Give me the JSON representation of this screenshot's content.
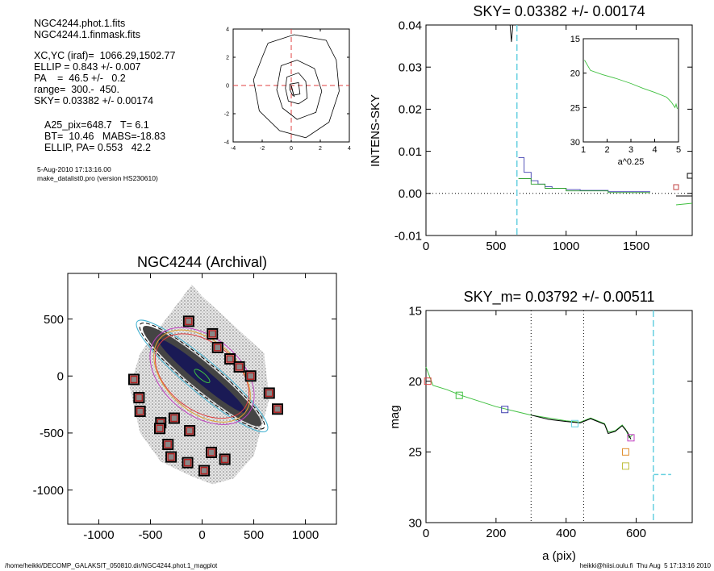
{
  "info": {
    "lines": [
      "NGC4244.phot.1.fits",
      "NGC4244.1.finmask.fits",
      "XC,YC (iraf)=  1066.29,1502.77",
      "ELLIP = 0.843 +/- 0.007",
      "PA    =  46.5 +/-   0.2",
      "range=  300.-  450.",
      "SKY= 0.03382 +/- 0.00174",
      "A25_pix=648.7   T= 6.1",
      "BT=  10.46   MABS=-18.83",
      "ELLIP, PA= 0.553   42.2",
      "5-Aug-2010 17:13:16.00",
      "make_datalist0.pro (version HS230610)"
    ]
  },
  "footer": {
    "left": "/home/heikki/DECOMP_GALAKSIT_050810.dir/NGC4244.phot.1_magplot",
    "right": "heikki@hiisi.oulu.fi  Thu Aug  5 17:13:16 2010"
  },
  "chart_data": [
    {
      "id": "contour",
      "type": "contour",
      "xlim": [
        -4,
        4
      ],
      "ylim": [
        -4,
        4
      ],
      "xticks": [
        "-4",
        "-2",
        "0",
        "2",
        "4"
      ],
      "yticks": [
        "-4",
        "-2",
        "0",
        "2",
        "4"
      ],
      "contours": [
        [
          [
            -1.6,
            3.0
          ],
          [
            0.2,
            3.6
          ],
          [
            2.4,
            3.2
          ],
          [
            3.1,
            1.8
          ],
          [
            3.3,
            -0.4
          ],
          [
            2.6,
            -2.6
          ],
          [
            1.0,
            -3.7
          ],
          [
            -0.8,
            -3.2
          ],
          [
            -2.2,
            -1.8
          ],
          [
            -2.6,
            0.4
          ],
          [
            -2.0,
            2.0
          ],
          [
            -1.6,
            3.0
          ]
        ],
        [
          [
            -0.7,
            1.4
          ],
          [
            0.4,
            1.8
          ],
          [
            1.6,
            1.2
          ],
          [
            2.1,
            -0.4
          ],
          [
            1.7,
            -1.9
          ],
          [
            0.4,
            -2.4
          ],
          [
            -0.6,
            -1.6
          ],
          [
            -1.0,
            -0.3
          ],
          [
            -0.7,
            1.4
          ]
        ],
        [
          [
            -0.3,
            0.6
          ],
          [
            0.5,
            0.9
          ],
          [
            1.0,
            0.3
          ],
          [
            1.1,
            -0.9
          ],
          [
            0.5,
            -1.3
          ],
          [
            -0.2,
            -1.1
          ],
          [
            -0.4,
            -0.2
          ],
          [
            -0.3,
            0.6
          ]
        ],
        [
          [
            -0.1,
            0.1
          ],
          [
            0.5,
            0.2
          ],
          [
            0.6,
            -0.6
          ],
          [
            0.1,
            -0.7
          ],
          [
            -0.1,
            -0.3
          ],
          [
            -0.1,
            0.1
          ]
        ]
      ],
      "cross_color": "#e04040"
    },
    {
      "id": "intens",
      "type": "line",
      "title": "SKY= 0.03382 +/- 0.00174",
      "ylabel": "INTENS-SKY",
      "xlim": [
        0,
        1900
      ],
      "ylim": [
        -0.01,
        0.04
      ],
      "xticks": [
        "0",
        "500",
        "1000",
        "1500"
      ],
      "yticks": [
        "-0.01",
        "0.00",
        "0.01",
        "0.02",
        "0.03",
        "0.04"
      ],
      "vline_x": 649,
      "vline_color": "#66d0e0",
      "series": [
        {
          "color": "#4040b0",
          "points": [
            [
              660,
              0.0085
            ],
            [
              700,
              0.0085
            ],
            [
              700,
              0.005
            ],
            [
              750,
              0.005
            ],
            [
              750,
              0.003
            ],
            [
              800,
              0.003
            ],
            [
              800,
              0.0022
            ],
            [
              850,
              0.0022
            ],
            [
              850,
              0.0016
            ],
            [
              900,
              0.0016
            ],
            [
              900,
              0.0012
            ],
            [
              1000,
              0.0012
            ],
            [
              1000,
              0.0009
            ],
            [
              1100,
              0.0009
            ],
            [
              1100,
              0.0007
            ],
            [
              1300,
              0.0007
            ],
            [
              1300,
              0.0004
            ],
            [
              1600,
              0.0004
            ]
          ]
        },
        {
          "color": "#30a030",
          "points": [
            [
              660,
              0.0035
            ],
            [
              750,
              0.0035
            ],
            [
              750,
              0.0022
            ],
            [
              850,
              0.0022
            ],
            [
              850,
              0.0012
            ],
            [
              1000,
              0.0012
            ],
            [
              1000,
              0.0006
            ],
            [
              1300,
              0.0006
            ],
            [
              1300,
              0.0002
            ],
            [
              1600,
              0.0002
            ]
          ]
        },
        {
          "color": "#000000",
          "points": [
            [
              600,
              0.04
            ],
            [
              610,
              0.036
            ],
            [
              620,
              0.04
            ]
          ]
        }
      ],
      "inset": {
        "xlabel": "a^0.25",
        "xlim": [
          1,
          5
        ],
        "ylim": [
          30,
          15
        ],
        "xticks": [
          "1",
          "2",
          "3",
          "4",
          "5"
        ],
        "yticks": [
          "15",
          "20",
          "25",
          "30"
        ],
        "points": [
          [
            1.05,
            18.1
          ],
          [
            1.3,
            19.6
          ],
          [
            1.8,
            20.2
          ],
          [
            2.4,
            20.8
          ],
          [
            3.0,
            21.5
          ],
          [
            3.5,
            22.2
          ],
          [
            4.0,
            22.8
          ],
          [
            4.5,
            23.5
          ],
          [
            4.7,
            24.2
          ],
          [
            4.85,
            25.0
          ],
          [
            4.9,
            24.5
          ],
          [
            4.95,
            25.2
          ]
        ],
        "color": "#40c040"
      }
    },
    {
      "id": "image",
      "type": "image",
      "title": "NGC4244 (Archival)",
      "xlim": [
        -1300,
        1300
      ],
      "ylim": [
        -1300,
        900
      ],
      "xticks": [
        "-1000",
        "-500",
        "0",
        "500",
        "1000"
      ],
      "yticks": [
        "500",
        "0",
        "-500",
        "-1000"
      ],
      "squares": [
        [
          -130,
          480
        ],
        [
          100,
          370
        ],
        [
          150,
          250
        ],
        [
          270,
          150
        ],
        [
          360,
          80
        ],
        [
          470,
          0
        ],
        [
          650,
          -150
        ],
        [
          730,
          -290
        ],
        [
          -660,
          -30
        ],
        [
          -610,
          -190
        ],
        [
          -600,
          -310
        ],
        [
          -270,
          -370
        ],
        [
          -400,
          -410
        ],
        [
          -410,
          -460
        ],
        [
          -120,
          -480
        ],
        [
          -330,
          -600
        ],
        [
          -300,
          -710
        ],
        [
          -140,
          -760
        ],
        [
          90,
          -670
        ],
        [
          220,
          -730
        ],
        [
          20,
          -830
        ]
      ]
    },
    {
      "id": "mag",
      "type": "line",
      "title": "SKY_m=  0.03792 +/- 0.00511",
      "xlabel": "a (pix)",
      "ylabel": "mag",
      "xlim": [
        0,
        760
      ],
      "ylim": [
        30,
        15
      ],
      "xticks": [
        "0",
        "200",
        "400",
        "600"
      ],
      "yticks": [
        "15",
        "20",
        "25",
        "30"
      ],
      "vlines": [
        300,
        450
      ],
      "vline_cyan": 649,
      "series": [
        {
          "color": "#40c040",
          "points": [
            [
              0,
              19.0
            ],
            [
              20,
              20.3
            ],
            [
              60,
              20.6
            ],
            [
              100,
              21.0
            ],
            [
              150,
              21.4
            ],
            [
              200,
              21.8
            ],
            [
              250,
              22.1
            ],
            [
              300,
              22.4
            ],
            [
              350,
              22.6
            ],
            [
              400,
              22.8
            ],
            [
              440,
              22.9
            ],
            [
              470,
              22.6
            ],
            [
              490,
              22.8
            ],
            [
              510,
              23.0
            ],
            [
              520,
              23.6
            ],
            [
              540,
              23.5
            ],
            [
              560,
              23.1
            ],
            [
              570,
              23.4
            ],
            [
              580,
              24.0
            ],
            [
              590,
              23.8
            ]
          ]
        },
        {
          "color": "#000000",
          "points": [
            [
              300,
              22.4
            ],
            [
              350,
              22.7
            ],
            [
              400,
              22.85
            ],
            [
              440,
              22.95
            ],
            [
              470,
              22.65
            ],
            [
              490,
              22.85
            ],
            [
              510,
              23.05
            ],
            [
              520,
              23.7
            ],
            [
              540,
              23.55
            ],
            [
              560,
              23.15
            ],
            [
              575,
              23.6
            ],
            [
              585,
              24.1
            ]
          ]
        }
      ],
      "markers": [
        {
          "x": 5,
          "y": 20.0,
          "color": "#e04040"
        },
        {
          "x": 95,
          "y": 21.0,
          "color": "#40c040"
        },
        {
          "x": 225,
          "y": 22.0,
          "color": "#4040b0"
        },
        {
          "x": 425,
          "y": 23.0,
          "color": "#66d0e0"
        },
        {
          "x": 585,
          "y": 24.0,
          "color": "#c040c0"
        },
        {
          "x": 570,
          "y": 25.0,
          "color": "#e09030"
        },
        {
          "x": 570,
          "y": 26.0,
          "color": "#c0c040"
        }
      ],
      "tail": {
        "color": "#66d0e0",
        "points": [
          [
            650,
            26.6
          ],
          [
            700,
            26.6
          ]
        ]
      }
    }
  ]
}
